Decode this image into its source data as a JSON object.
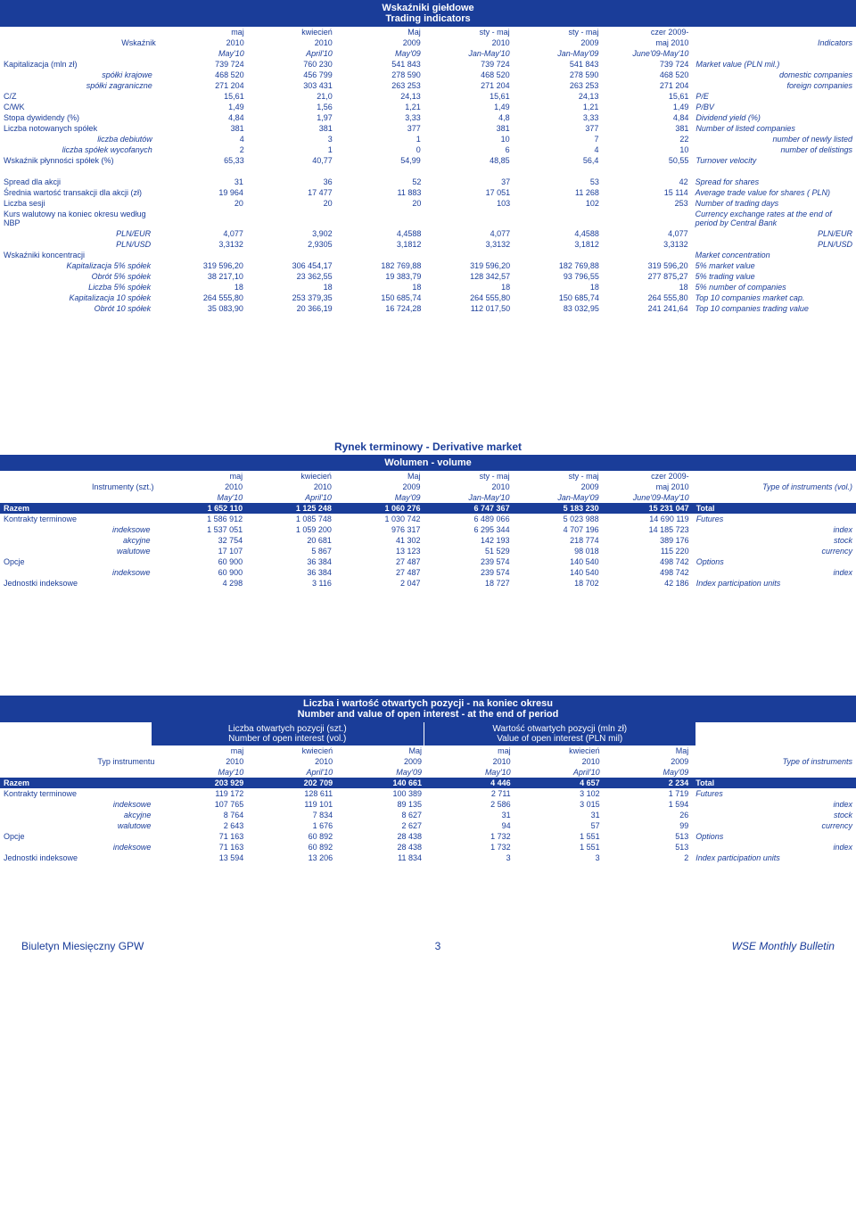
{
  "titles": {
    "t1_pl": "Wskaźniki giełdowe",
    "t1_en": "Trading indicators",
    "t2_pl": "Rynek terminowy - Derivative market",
    "t2_sub": "Wolumen - volume",
    "t3_pl": "Liczba i wartość otwartych pozycji - na koniec okresu",
    "t3_en": "Number and value of open interest - at the end of period",
    "t3_left_pl": "Liczba otwartych pozycji (szt.)",
    "t3_left_en": "Number of open interest (vol.)",
    "t3_right_pl": "Wartość otwartych pozycji (mln zł)",
    "t3_right_en": "Value of open interest (PLN mil)"
  },
  "col_headers": {
    "pl_label": "Wskaźnik",
    "c1a": "maj",
    "c1b": "2010",
    "c1c": "May'10",
    "c2a": "kwiecień",
    "c2b": "2010",
    "c2c": "April'10",
    "c3a": "Maj",
    "c3b": "2009",
    "c3c": "May'09",
    "c4a": "sty - maj",
    "c4b": "2010",
    "c4c": "Jan-May'10",
    "c5a": "sty - maj",
    "c5b": "2009",
    "c5c": "Jan-May'09",
    "c6a": "czer 2009-",
    "c6b": "maj 2010",
    "c6c": "June'09-May'10",
    "en_label": "Indicators"
  },
  "t1_rows": [
    {
      "pl": "Kapitalizacja (mln zł)",
      "v": [
        "739 724",
        "760 230",
        "541 843",
        "739 724",
        "541 843",
        "739 724"
      ],
      "en": "Market value (PLN mil.)"
    },
    {
      "pl": "spółki krajowe",
      "indent": 1,
      "italic": 1,
      "v": [
        "468 520",
        "456 799",
        "278 590",
        "468 520",
        "278 590",
        "468 520"
      ],
      "en": "domestic companies",
      "en_align": "right"
    },
    {
      "pl": "spółki zagraniczne",
      "indent": 1,
      "italic": 1,
      "v": [
        "271 204",
        "303 431",
        "263 253",
        "271 204",
        "263 253",
        "271 204"
      ],
      "en": "foreign companies",
      "en_align": "right"
    },
    {
      "pl": "C/Z",
      "v": [
        "15,61",
        "21,0",
        "24,13",
        "15,61",
        "24,13",
        "15,61"
      ],
      "en": "P/E"
    },
    {
      "pl": "C/WK",
      "v": [
        "1,49",
        "1,56",
        "1,21",
        "1,49",
        "1,21",
        "1,49"
      ],
      "en": "P/BV"
    },
    {
      "pl": "Stopa dywidendy (%)",
      "v": [
        "4,84",
        "1,97",
        "3,33",
        "4,8",
        "3,33",
        "4,84"
      ],
      "en": "Dividend yield (%)"
    },
    {
      "pl": "Liczba notowanych spółek",
      "v": [
        "381",
        "381",
        "377",
        "381",
        "377",
        "381"
      ],
      "en": "Number of listed companies"
    },
    {
      "pl": "liczba debiutów",
      "indent": 1,
      "italic": 1,
      "v": [
        "4",
        "3",
        "1",
        "10",
        "7",
        "22"
      ],
      "en": "number of newly listed",
      "en_align": "right"
    },
    {
      "pl": "liczba spółek wycofanych",
      "indent": 1,
      "italic": 1,
      "v": [
        "2",
        "1",
        "0",
        "6",
        "4",
        "10"
      ],
      "en": "number of delistings",
      "en_align": "right"
    },
    {
      "pl": "Wskaźnik płynności spółek (%)",
      "v": [
        "65,33",
        "40,77",
        "54,99",
        "48,85",
        "56,4",
        "50,55"
      ],
      "en": "Turnover velocity"
    }
  ],
  "t1_rows2": [
    {
      "pl": "Spread dla akcji",
      "v": [
        "31",
        "36",
        "52",
        "37",
        "53",
        "42"
      ],
      "en": "Spread for shares"
    },
    {
      "pl": "Średnia wartość transakcji dla akcji (zł)",
      "v": [
        "19 964",
        "17 477",
        "11 883",
        "17 051",
        "11 268",
        "15 114"
      ],
      "en": "Average trade value for shares ( PLN)"
    },
    {
      "pl": "Liczba sesji",
      "v": [
        "20",
        "20",
        "20",
        "103",
        "102",
        "253"
      ],
      "en": "Number of trading days"
    },
    {
      "pl": "Kurs walutowy na koniec okresu według NBP",
      "v": [
        "",
        "",
        "",
        "",
        "",
        ""
      ],
      "en": "Currency exchange rates at the end of period by Central Bank"
    },
    {
      "pl": "PLN/EUR",
      "indent": 1,
      "italic": 1,
      "v": [
        "4,077",
        "3,902",
        "4,4588",
        "4,077",
        "4,4588",
        "4,077"
      ],
      "en": "PLN/EUR",
      "en_align": "right"
    },
    {
      "pl": "PLN/USD",
      "indent": 1,
      "italic": 1,
      "v": [
        "3,3132",
        "2,9305",
        "3,1812",
        "3,3132",
        "3,1812",
        "3,3132"
      ],
      "en": "PLN/USD",
      "en_align": "right"
    },
    {
      "pl": "Wskaźniki koncentracji",
      "v": [
        "",
        "",
        "",
        "",
        "",
        ""
      ],
      "en": "Market concentration"
    },
    {
      "pl": "Kapitalizacja 5% spółek",
      "indent": 1,
      "italic": 1,
      "v": [
        "319 596,20",
        "306 454,17",
        "182 769,88",
        "319 596,20",
        "182 769,88",
        "319 596,20"
      ],
      "en": "5% market value"
    },
    {
      "pl": "Obrót 5% spółek",
      "indent": 1,
      "italic": 1,
      "v": [
        "38 217,10",
        "23 362,55",
        "19 383,79",
        "128 342,57",
        "93 796,55",
        "277 875,27"
      ],
      "en": "5% trading value"
    },
    {
      "pl": "Liczba 5% spółek",
      "indent": 1,
      "italic": 1,
      "v": [
        "18",
        "18",
        "18",
        "18",
        "18",
        "18"
      ],
      "en": "5% number of companies"
    },
    {
      "pl": "Kapitalizacja 10 spółek",
      "indent": 1,
      "italic": 1,
      "v": [
        "264 555,80",
        "253 379,35",
        "150 685,74",
        "264 555,80",
        "150 685,74",
        "264 555,80"
      ],
      "en": "Top 10 companies market cap."
    },
    {
      "pl": "Obrót 10 spółek",
      "indent": 1,
      "italic": 1,
      "v": [
        "35 083,90",
        "20 366,19",
        "16 724,28",
        "112 017,50",
        "83 032,95",
        "241 241,64"
      ],
      "en": "Top 10 companies trading value"
    }
  ],
  "t2_header": {
    "pl_label": "Instrumenty (szt.)",
    "en_label": "Type of instruments (vol.)"
  },
  "t2_rows": [
    {
      "pl": "Razem",
      "blue": 1,
      "bold": 1,
      "v": [
        "1 652 110",
        "1 125 248",
        "1 060 276",
        "6 747 367",
        "5 183 230",
        "15 231 047"
      ],
      "en": "Total"
    },
    {
      "pl": "Kontrakty terminowe",
      "v": [
        "1 586 912",
        "1 085 748",
        "1 030 742",
        "6 489 066",
        "5 023 988",
        "14 690 119"
      ],
      "en": "Futures"
    },
    {
      "pl": "indeksowe",
      "indent": 1,
      "italic": 1,
      "v": [
        "1 537 051",
        "1 059 200",
        "976 317",
        "6 295 344",
        "4 707 196",
        "14 185 723"
      ],
      "en": "index",
      "en_align": "right"
    },
    {
      "pl": "akcyjne",
      "indent": 1,
      "italic": 1,
      "v": [
        "32 754",
        "20 681",
        "41 302",
        "142 193",
        "218 774",
        "389 176"
      ],
      "en": "stock",
      "en_align": "right"
    },
    {
      "pl": "walutowe",
      "indent": 1,
      "italic": 1,
      "v": [
        "17 107",
        "5 867",
        "13 123",
        "51 529",
        "98 018",
        "115 220"
      ],
      "en": "currency",
      "en_align": "right"
    },
    {
      "pl": "Opcje",
      "v": [
        "60 900",
        "36 384",
        "27 487",
        "239 574",
        "140 540",
        "498 742"
      ],
      "en": "Options"
    },
    {
      "pl": "indeksowe",
      "indent": 1,
      "italic": 1,
      "v": [
        "60 900",
        "36 384",
        "27 487",
        "239 574",
        "140 540",
        "498 742"
      ],
      "en": "index",
      "en_align": "right"
    },
    {
      "pl": "Jednostki indeksowe",
      "v": [
        "4 298",
        "3 116",
        "2 047",
        "18 727",
        "18 702",
        "42 186"
      ],
      "en": "Index participation units"
    }
  ],
  "t3_header": {
    "pl_label": "Typ instrumentu",
    "en_label": "Type of instruments",
    "c4c": "May'10",
    "c5c": "April'10",
    "c6c": "May'09"
  },
  "t3_rows": [
    {
      "pl": "Razem",
      "blue": 1,
      "bold": 1,
      "v": [
        "203 929",
        "202 709",
        "140 661",
        "4 446",
        "4 657",
        "2 234"
      ],
      "en": "Total"
    },
    {
      "pl": "Kontrakty terminowe",
      "v": [
        "119 172",
        "128 611",
        "100 389",
        "2 711",
        "3 102",
        "1 719"
      ],
      "en": "Futures"
    },
    {
      "pl": "indeksowe",
      "indent": 1,
      "italic": 1,
      "v": [
        "107 765",
        "119 101",
        "89 135",
        "2 586",
        "3 015",
        "1 594"
      ],
      "en": "index",
      "en_align": "right"
    },
    {
      "pl": "akcyjne",
      "indent": 1,
      "italic": 1,
      "v": [
        "8 764",
        "7 834",
        "8 627",
        "31",
        "31",
        "26"
      ],
      "en": "stock",
      "en_align": "right"
    },
    {
      "pl": "walutowe",
      "indent": 1,
      "italic": 1,
      "v": [
        "2 643",
        "1 676",
        "2 627",
        "94",
        "57",
        "99"
      ],
      "en": "currency",
      "en_align": "right"
    },
    {
      "pl": "Opcje",
      "v": [
        "71 163",
        "60 892",
        "28 438",
        "1 732",
        "1 551",
        "513"
      ],
      "en": "Options"
    },
    {
      "pl": "indeksowe",
      "indent": 1,
      "italic": 1,
      "v": [
        "71 163",
        "60 892",
        "28 438",
        "1 732",
        "1 551",
        "513"
      ],
      "en": "index",
      "en_align": "right"
    },
    {
      "pl": "Jednostki indeksowe",
      "v": [
        "13 594",
        "13 206",
        "11 834",
        "3",
        "3",
        "2"
      ],
      "en": "Index participation units"
    }
  ],
  "footer": {
    "left": "Biuletyn Miesięczny GPW",
    "page": "3",
    "right": "WSE Monthly Bulletin"
  }
}
